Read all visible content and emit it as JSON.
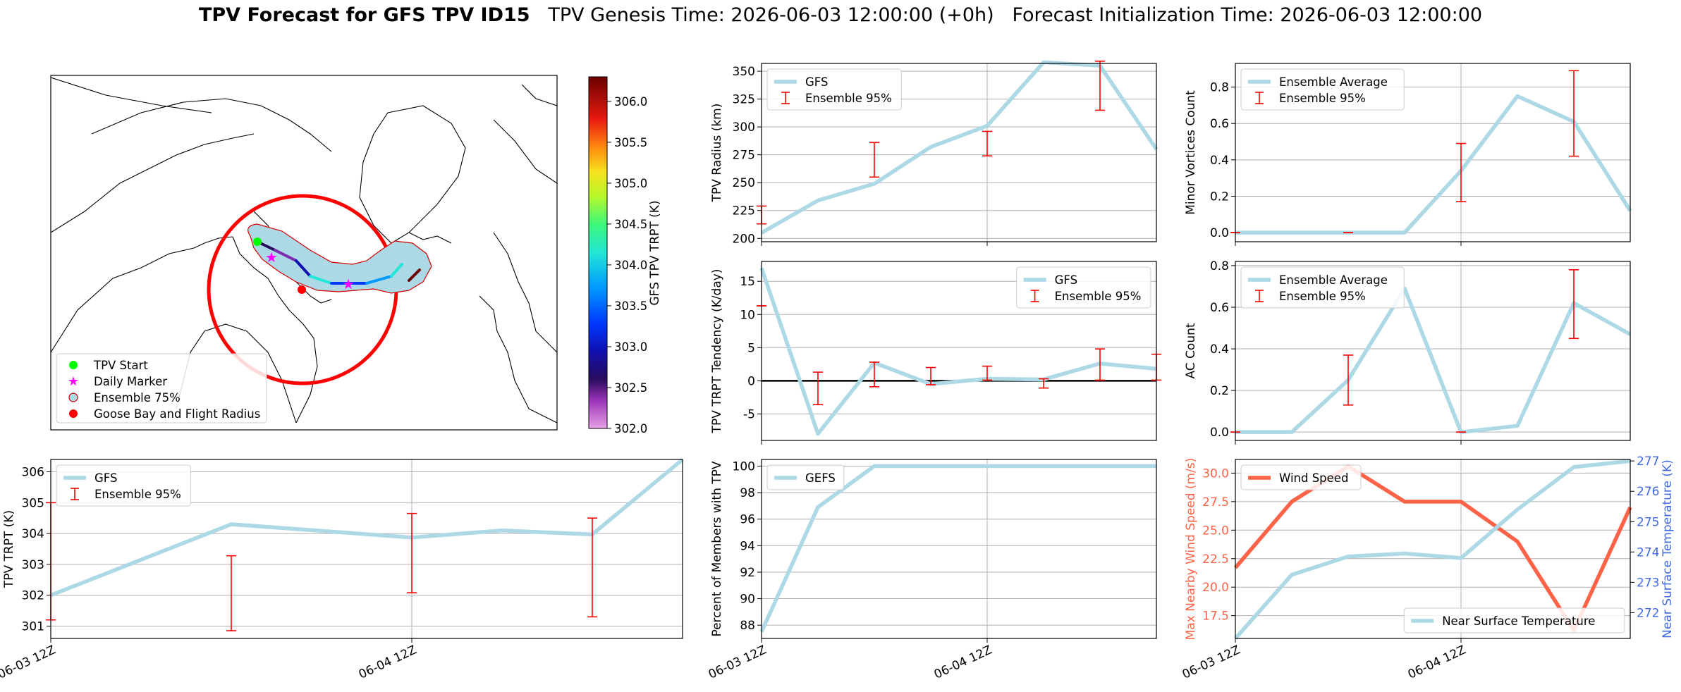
{
  "title": {
    "bold": "TPV Forecast for GFS TPV ID15",
    "genesis": "TPV Genesis Time: 2026-06-03 12:00:00 (+0h)",
    "init": "Forecast Initialization Time: 2026-06-03 12:00:00"
  },
  "colors": {
    "model_line": "#add8e6",
    "error_bar": "#ff0000",
    "wind_line": "#ff6347",
    "temp_axis": "#4169e1",
    "zero_line": "#000000",
    "grid": "#b0b0b0"
  },
  "time_ticks": [
    "06-03 12Z",
    "06-04 12Z"
  ],
  "map": {
    "legend": [
      "TPV Start",
      "Daily Marker",
      "Ensemble 75%",
      "Goose Bay and Flight Radius"
    ],
    "colorbar": {
      "label": "GFS TPV TRPT (K)",
      "min": 302.0,
      "max": 306.3,
      "ticks": [
        "302.0",
        "302.5",
        "303.0",
        "303.5",
        "304.0",
        "304.5",
        "305.0",
        "305.5",
        "306.0"
      ]
    }
  },
  "chart_data": [
    {
      "id": "radius",
      "type": "line",
      "ylabel": "TPV Radius (km)",
      "legend": [
        "GFS",
        "Ensemble 95%"
      ],
      "legend_pos": "upper-left",
      "ylim": [
        197,
        357
      ],
      "yticks": [
        200,
        225,
        250,
        275,
        300,
        325,
        350
      ],
      "x": [
        0,
        0.25,
        0.5,
        0.75,
        1.0,
        1.25,
        1.5,
        1.75
      ],
      "values": [
        205,
        234,
        249,
        282,
        301,
        358,
        355,
        280
      ],
      "errorbars": [
        {
          "x": 0,
          "low": 213,
          "high": 229
        },
        {
          "x": 0.5,
          "low": 255,
          "high": 286
        },
        {
          "x": 1.0,
          "low": 274,
          "high": 296
        },
        {
          "x": 1.5,
          "low": 315,
          "high": 359
        }
      ]
    },
    {
      "id": "minor",
      "type": "line",
      "ylabel": "Minor Vortices Count",
      "legend": [
        "Ensemble Average",
        "Ensemble 95%"
      ],
      "legend_pos": "upper-left",
      "ylim": [
        -0.05,
        0.93
      ],
      "yticks": [
        0.0,
        0.2,
        0.4,
        0.6,
        0.8
      ],
      "x": [
        0,
        0.25,
        0.5,
        0.75,
        1.0,
        1.25,
        1.5,
        1.75
      ],
      "values": [
        0,
        0,
        0,
        0,
        0.34,
        0.75,
        0.61,
        0.12
      ],
      "errorbars": [
        {
          "x": 0,
          "low": 0,
          "high": 0
        },
        {
          "x": 0.5,
          "low": 0,
          "high": 0
        },
        {
          "x": 1.0,
          "low": 0.17,
          "high": 0.49
        },
        {
          "x": 1.5,
          "low": 0.42,
          "high": 0.89
        }
      ]
    },
    {
      "id": "tendency",
      "type": "line",
      "ylabel": "TPV TRPT Tendency (K/day)",
      "legend": [
        "GFS",
        "Ensemble 95%"
      ],
      "legend_pos": "upper-right",
      "ylim": [
        -9,
        18
      ],
      "yticks": [
        -5,
        0,
        5,
        10,
        15
      ],
      "zero_line": true,
      "x": [
        0,
        0.125,
        0.25,
        0.375,
        0.5,
        0.625,
        0.75,
        0.875
      ],
      "values": [
        17,
        -8,
        2.7,
        -0.5,
        0.3,
        0.2,
        2.6,
        1.8
      ],
      "errorbars": [
        {
          "x": 0,
          "low": 11.3,
          "high": 11.3
        },
        {
          "x": 0.125,
          "low": -3.6,
          "high": 1.3
        },
        {
          "x": 0.25,
          "low": -0.9,
          "high": 2.8
        },
        {
          "x": 0.375,
          "low": -0.6,
          "high": 2.0
        },
        {
          "x": 0.5,
          "low": 0.1,
          "high": 2.2
        },
        {
          "x": 0.625,
          "low": -1.1,
          "high": 0.3
        },
        {
          "x": 0.75,
          "low": 0.1,
          "high": 4.8
        },
        {
          "x": 0.875,
          "low": 0.1,
          "high": 4.0
        }
      ]
    },
    {
      "id": "ac",
      "type": "line",
      "ylabel": "AC Count",
      "legend": [
        "Ensemble Average",
        "Ensemble 95%"
      ],
      "legend_pos": "upper-left",
      "ylim": [
        -0.04,
        0.82
      ],
      "yticks": [
        0.0,
        0.2,
        0.4,
        0.6,
        0.8
      ],
      "x": [
        0,
        0.25,
        0.5,
        0.75,
        1.0,
        1.25,
        1.5,
        1.75
      ],
      "values": [
        0,
        0,
        0.25,
        0.69,
        0,
        0.03,
        0.62,
        0.47
      ],
      "errorbars": [
        {
          "x": 0,
          "low": 0,
          "high": 0
        },
        {
          "x": 0.5,
          "low": 0.13,
          "high": 0.37
        },
        {
          "x": 1.0,
          "low": 0,
          "high": 0
        },
        {
          "x": 1.5,
          "low": 0.45,
          "high": 0.78
        }
      ]
    },
    {
      "id": "trpt",
      "type": "line",
      "ylabel": "TPV TRPT (K)",
      "legend": [
        "GFS",
        "Ensemble 95%"
      ],
      "legend_pos": "upper-left",
      "ylim": [
        300.6,
        306.4
      ],
      "yticks": [
        301,
        302,
        303,
        304,
        305,
        306
      ],
      "x": [
        0,
        0.5,
        1.0,
        1.25,
        1.5,
        1.75
      ],
      "values": [
        302.0,
        304.3,
        303.87,
        304.1,
        303.97,
        306.4
      ],
      "errorbars": [
        {
          "x": 0,
          "low": 301.2,
          "high": 305.0
        },
        {
          "x": 0.5,
          "low": 300.85,
          "high": 303.28
        },
        {
          "x": 1.0,
          "low": 302.08,
          "high": 304.65
        },
        {
          "x": 1.5,
          "low": 301.3,
          "high": 304.5
        }
      ]
    },
    {
      "id": "members",
      "type": "line",
      "ylabel": "Percent of Members with TPV",
      "legend": [
        "GEFS"
      ],
      "legend_pos": "upper-left",
      "ylim": [
        87,
        100.5
      ],
      "yticks": [
        88,
        90,
        92,
        94,
        96,
        98,
        100
      ],
      "x": [
        0,
        0.25,
        0.5,
        0.75,
        1.0,
        1.25,
        1.5,
        1.75
      ],
      "values": [
        87.5,
        96.9,
        100,
        100,
        100,
        100,
        100,
        100
      ]
    },
    {
      "id": "wind_temp",
      "type": "line",
      "ylabel": "Max Nearby Wind Speed (m/s)",
      "y2label": "Near Surface Temperature (K)",
      "legend": [
        "Wind Speed"
      ],
      "legend2": [
        "Near Surface Temperature"
      ],
      "ylim": [
        15.5,
        31.2
      ],
      "yticks": [
        17.5,
        20.0,
        22.5,
        25.0,
        27.5,
        30.0
      ],
      "y2lim": [
        271.15,
        277.05
      ],
      "y2ticks": [
        272,
        273,
        274,
        275,
        276,
        277
      ],
      "x": [
        0,
        0.25,
        0.5,
        0.75,
        1.0,
        1.25,
        1.5,
        1.75
      ],
      "wind": [
        21.7,
        27.5,
        30.6,
        27.5,
        27.5,
        24.0,
        16.2,
        27.0
      ],
      "temp": [
        271.15,
        273.25,
        273.85,
        273.95,
        273.8,
        275.4,
        276.8,
        277.0
      ]
    }
  ]
}
